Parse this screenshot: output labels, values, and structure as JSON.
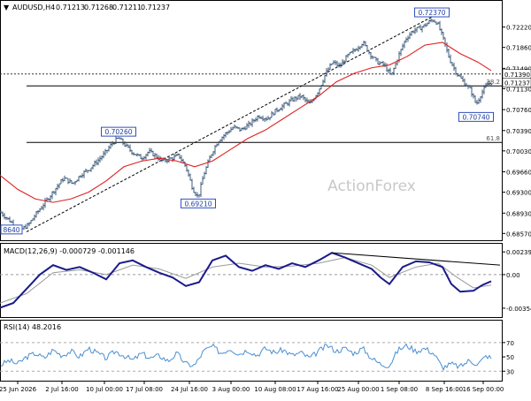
{
  "chart_data": [
    {
      "panel": "price",
      "type": "ohlc",
      "title": "AUDUSD,H4",
      "quote": {
        "open": "0.71213",
        "high": "0.71268",
        "low": "0.71211",
        "close": "0.71237"
      },
      "watermark": "ActionForex",
      "ylim": [
        0.6845,
        0.7248
      ],
      "yticks": [
        "0.72220",
        "0.71860",
        "0.71490",
        "0.71130",
        "0.70760",
        "0.70390",
        "0.70030",
        "0.69660",
        "0.69300",
        "0.68930",
        "0.68570"
      ],
      "current_price": "0.71237",
      "dotted_level": "0.71390",
      "xticks": [
        "25 Jun 2026",
        "2 Jul 16:00",
        "10 Jul 00:00",
        "17 Jul 08:00",
        "24 Jul 16:00",
        "3 Aug 00:00",
        "10 Aug 08:00",
        "17 Aug 16:00",
        "25 Aug 00:00",
        "1 Sep 08:00",
        "8 Sep 16:00",
        "16 Sep 00:00"
      ],
      "close_path": [
        [
          0,
          0.6895
        ],
        [
          12,
          0.6878
        ],
        [
          22,
          0.6862
        ],
        [
          32,
          0.6872
        ],
        [
          40,
          0.689
        ],
        [
          50,
          0.691
        ],
        [
          62,
          0.6935
        ],
        [
          72,
          0.6955
        ],
        [
          82,
          0.6945
        ],
        [
          92,
          0.6962
        ],
        [
          100,
          0.697
        ],
        [
          110,
          0.6985
        ],
        [
          118,
          0.6998
        ],
        [
          126,
          0.7015
        ],
        [
          134,
          0.7026
        ],
        [
          142,
          0.7012
        ],
        [
          150,
          0.7
        ],
        [
          160,
          0.699
        ],
        [
          168,
          0.7002
        ],
        [
          176,
          0.6994
        ],
        [
          184,
          0.6985
        ],
        [
          194,
          0.699
        ],
        [
          202,
          0.6995
        ],
        [
          210,
          0.6975
        ],
        [
          218,
          0.6935
        ],
        [
          224,
          0.6921
        ],
        [
          230,
          0.696
        ],
        [
          238,
          0.6995
        ],
        [
          246,
          0.702
        ],
        [
          256,
          0.7035
        ],
        [
          264,
          0.7045
        ],
        [
          272,
          0.704
        ],
        [
          282,
          0.705
        ],
        [
          292,
          0.7065
        ],
        [
          302,
          0.706
        ],
        [
          312,
          0.7075
        ],
        [
          322,
          0.7085
        ],
        [
          332,
          0.7095
        ],
        [
          340,
          0.71
        ],
        [
          350,
          0.7085
        ],
        [
          360,
          0.711
        ],
        [
          368,
          0.714
        ],
        [
          376,
          0.716
        ],
        [
          384,
          0.7152
        ],
        [
          392,
          0.717
        ],
        [
          400,
          0.718
        ],
        [
          410,
          0.7195
        ],
        [
          418,
          0.7175
        ],
        [
          426,
          0.716
        ],
        [
          434,
          0.7155
        ],
        [
          442,
          0.7135
        ],
        [
          450,
          0.717
        ],
        [
          458,
          0.72
        ],
        [
          466,
          0.7215
        ],
        [
          474,
          0.722
        ],
        [
          480,
          0.7225
        ],
        [
          488,
          0.7235
        ],
        [
          494,
          0.723
        ],
        [
          500,
          0.7205
        ],
        [
          508,
          0.7165
        ],
        [
          516,
          0.714
        ],
        [
          524,
          0.7125
        ],
        [
          532,
          0.711
        ],
        [
          538,
          0.7085
        ],
        [
          544,
          0.7105
        ],
        [
          550,
          0.712
        ],
        [
          555,
          0.7124
        ]
      ],
      "ma_path": [
        [
          0,
          0.696
        ],
        [
          20,
          0.6935
        ],
        [
          40,
          0.6918
        ],
        [
          60,
          0.6912
        ],
        [
          80,
          0.6918
        ],
        [
          100,
          0.693
        ],
        [
          120,
          0.695
        ],
        [
          140,
          0.6975
        ],
        [
          160,
          0.6985
        ],
        [
          180,
          0.699
        ],
        [
          200,
          0.6985
        ],
        [
          220,
          0.6975
        ],
        [
          240,
          0.6985
        ],
        [
          260,
          0.7005
        ],
        [
          280,
          0.7025
        ],
        [
          300,
          0.704
        ],
        [
          320,
          0.706
        ],
        [
          340,
          0.708
        ],
        [
          360,
          0.71
        ],
        [
          380,
          0.7125
        ],
        [
          400,
          0.714
        ],
        [
          420,
          0.715
        ],
        [
          440,
          0.7155
        ],
        [
          460,
          0.717
        ],
        [
          480,
          0.719
        ],
        [
          500,
          0.7195
        ],
        [
          520,
          0.7175
        ],
        [
          540,
          0.716
        ],
        [
          555,
          0.7145
        ]
      ],
      "trendlines": [
        {
          "name": "rising-channel-line",
          "points": [
            [
              30,
              0.686
            ],
            [
              488,
              0.724
            ]
          ]
        }
      ],
      "horizontal_lines": [
        {
          "label": "38.2",
          "value": 0.7118,
          "x_start": 30
        },
        {
          "label": "61.8",
          "value": 0.7018,
          "x_start": 30
        }
      ],
      "annotations": [
        {
          "label": "0.72370",
          "x": 488,
          "y": 0.7237,
          "pos": "above"
        },
        {
          "label": "0.70260",
          "x": 134,
          "y": 0.7026,
          "pos": "above"
        },
        {
          "label": "0.69210",
          "x": 224,
          "y": 0.6921,
          "pos": "below"
        },
        {
          "label": "0.70740",
          "x": 538,
          "y": 0.7074,
          "pos": "below"
        },
        {
          "label": "8640",
          "x": 0,
          "y": 0.6864,
          "pos": "left"
        }
      ]
    },
    {
      "panel": "macd",
      "type": "line",
      "title": "MACD(12,26,9) -0.000729 -0.001146",
      "ylim": [
        -0.0042,
        0.0026
      ],
      "yticks": [
        "0.002393",
        "0.00",
        "-0.003542"
      ],
      "macd_path": [
        [
          0,
          -0.0035
        ],
        [
          15,
          -0.003
        ],
        [
          30,
          -0.0015
        ],
        [
          45,
          0.0
        ],
        [
          60,
          0.001
        ],
        [
          75,
          0.0005
        ],
        [
          90,
          0.0008
        ],
        [
          105,
          0.0002
        ],
        [
          120,
          -0.0005
        ],
        [
          135,
          0.0012
        ],
        [
          150,
          0.0015
        ],
        [
          165,
          0.0008
        ],
        [
          180,
          0.0002
        ],
        [
          195,
          -0.0003
        ],
        [
          210,
          -0.0012
        ],
        [
          225,
          -0.0008
        ],
        [
          240,
          0.0015
        ],
        [
          255,
          0.002
        ],
        [
          270,
          0.0008
        ],
        [
          285,
          0.0004
        ],
        [
          300,
          0.001
        ],
        [
          315,
          0.0006
        ],
        [
          330,
          0.0012
        ],
        [
          345,
          0.0008
        ],
        [
          360,
          0.0015
        ],
        [
          375,
          0.0023
        ],
        [
          390,
          0.0018
        ],
        [
          405,
          0.0012
        ],
        [
          420,
          0.0006
        ],
        [
          430,
          -0.0003
        ],
        [
          440,
          -0.001
        ],
        [
          455,
          0.0008
        ],
        [
          470,
          0.0014
        ],
        [
          485,
          0.0013
        ],
        [
          500,
          0.0008
        ],
        [
          510,
          -0.001
        ],
        [
          520,
          -0.0018
        ],
        [
          535,
          -0.0017
        ],
        [
          545,
          -0.0011
        ],
        [
          555,
          -0.0007
        ]
      ],
      "signal_path": [
        [
          0,
          -0.003
        ],
        [
          30,
          -0.002
        ],
        [
          60,
          0.0002
        ],
        [
          90,
          0.0005
        ],
        [
          120,
          0.0
        ],
        [
          150,
          0.001
        ],
        [
          180,
          0.0006
        ],
        [
          210,
          -0.0004
        ],
        [
          240,
          0.0008
        ],
        [
          270,
          0.0012
        ],
        [
          300,
          0.0008
        ],
        [
          330,
          0.0009
        ],
        [
          360,
          0.0012
        ],
        [
          390,
          0.0018
        ],
        [
          420,
          0.001
        ],
        [
          440,
          -0.0003
        ],
        [
          470,
          0.0008
        ],
        [
          495,
          0.0012
        ],
        [
          515,
          -0.0002
        ],
        [
          535,
          -0.0014
        ],
        [
          555,
          -0.0011
        ]
      ],
      "trendlines": [
        {
          "name": "macd-divergence-line",
          "points": [
            [
              375,
              0.0023
            ],
            [
              565,
              0.001
            ]
          ]
        }
      ]
    },
    {
      "panel": "rsi",
      "type": "line",
      "title": "RSI(14) 48.2016",
      "ylim": [
        18,
        92
      ],
      "yticks": [
        "70",
        "50",
        "30"
      ],
      "levels": [
        70,
        30
      ],
      "rsi_path": [
        [
          0,
          38
        ],
        [
          10,
          45
        ],
        [
          20,
          40
        ],
        [
          30,
          50
        ],
        [
          40,
          55
        ],
        [
          50,
          48
        ],
        [
          60,
          60
        ],
        [
          70,
          52
        ],
        [
          80,
          58
        ],
        [
          90,
          50
        ],
        [
          100,
          62
        ],
        [
          110,
          55
        ],
        [
          120,
          48
        ],
        [
          130,
          58
        ],
        [
          140,
          52
        ],
        [
          150,
          45
        ],
        [
          160,
          55
        ],
        [
          170,
          48
        ],
        [
          180,
          52
        ],
        [
          190,
          44
        ],
        [
          200,
          55
        ],
        [
          210,
          40
        ],
        [
          220,
          38
        ],
        [
          230,
          58
        ],
        [
          240,
          65
        ],
        [
          250,
          55
        ],
        [
          260,
          62
        ],
        [
          270,
          54
        ],
        [
          280,
          60
        ],
        [
          290,
          52
        ],
        [
          300,
          62
        ],
        [
          310,
          56
        ],
        [
          320,
          60
        ],
        [
          330,
          52
        ],
        [
          340,
          56
        ],
        [
          350,
          48
        ],
        [
          360,
          58
        ],
        [
          370,
          66
        ],
        [
          380,
          58
        ],
        [
          390,
          62
        ],
        [
          400,
          55
        ],
        [
          410,
          62
        ],
        [
          420,
          48
        ],
        [
          430,
          40
        ],
        [
          440,
          38
        ],
        [
          450,
          60
        ],
        [
          460,
          66
        ],
        [
          470,
          58
        ],
        [
          480,
          62
        ],
        [
          490,
          55
        ],
        [
          500,
          35
        ],
        [
          510,
          40
        ],
        [
          520,
          36
        ],
        [
          530,
          45
        ],
        [
          540,
          40
        ],
        [
          550,
          52
        ],
        [
          555,
          48
        ]
      ]
    }
  ]
}
